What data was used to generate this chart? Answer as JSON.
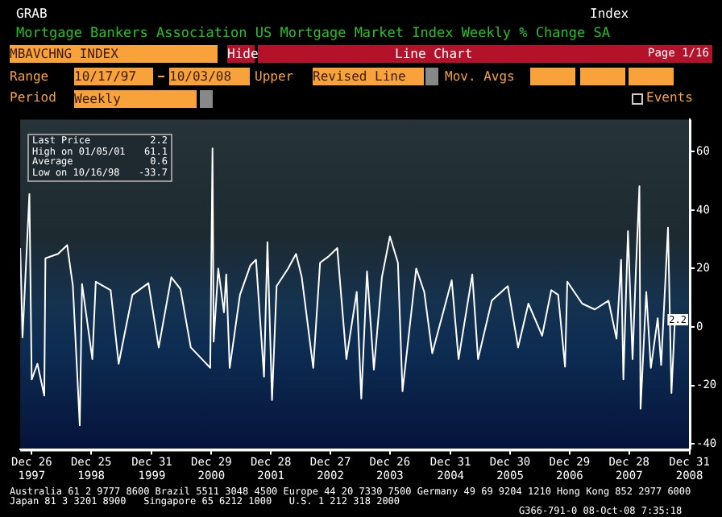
{
  "chart_data": {
    "type": "line",
    "title": "Mortgage Bankers Association US Mortgage Market Index Weekly % Change SA",
    "x": [
      "1997-10-17",
      "1997-10-31",
      "1997-12-12",
      "1997-12-26",
      "1998-01-30",
      "1998-03-13",
      "1998-03-20",
      "1998-06-05",
      "1998-07-31",
      "1998-09-04",
      "1998-10-16",
      "1998-10-30",
      "1999-01-01",
      "1999-01-22",
      "1999-04-23",
      "1999-06-11",
      "1999-09-03",
      "1999-12-10",
      "2000-02-11",
      "2000-04-28",
      "2000-06-23",
      "2000-08-25",
      "2000-12-22",
      "2001-01-05",
      "2001-01-12",
      "2001-02-09",
      "2001-03-16",
      "2001-03-30",
      "2001-04-20",
      "2001-06-22",
      "2001-08-24",
      "2001-09-28",
      "2001-11-16",
      "2001-12-07",
      "2002-01-04",
      "2002-02-01",
      "2002-04-12",
      "2002-05-31",
      "2002-07-05",
      "2002-09-13",
      "2002-10-25",
      "2002-12-13",
      "2003-02-07",
      "2003-04-04",
      "2003-06-06",
      "2003-07-04",
      "2003-08-08",
      "2003-09-19",
      "2003-11-07",
      "2003-12-26",
      "2004-02-13",
      "2004-03-12",
      "2004-06-04",
      "2004-07-23",
      "2004-09-10",
      "2005-01-07",
      "2005-02-18",
      "2005-05-13",
      "2005-06-17",
      "2005-09-09",
      "2005-12-16",
      "2006-02-17",
      "2006-04-21",
      "2006-07-14",
      "2006-09-08",
      "2006-10-20",
      "2006-12-01",
      "2006-12-15",
      "2007-03-16",
      "2007-06-01",
      "2007-08-24",
      "2007-10-12",
      "2007-11-09",
      "2007-11-23",
      "2007-12-21",
      "2008-01-18",
      "2008-02-08",
      "2008-02-29",
      "2008-03-07",
      "2008-04-11",
      "2008-05-09",
      "2008-06-20",
      "2008-07-11",
      "2008-08-22",
      "2008-09-12",
      "2008-10-03"
    ],
    "series": [
      {
        "color": "#ffffff",
        "values": [
          27,
          -3.6,
          45.5,
          -18,
          -12.6,
          -23.5,
          23.5,
          25,
          28,
          14,
          -33.7,
          14.7,
          -11,
          15.5,
          12.6,
          -12.6,
          11,
          15,
          -7,
          17,
          13,
          -7,
          -14,
          61.1,
          -5,
          20,
          5,
          18,
          -14,
          11,
          21,
          23,
          -17,
          29,
          -25,
          14,
          20,
          25,
          17,
          -14,
          22,
          24,
          27,
          -11,
          12,
          -24.5,
          19,
          -14.6,
          17,
          31,
          22,
          -22,
          20,
          12,
          -9,
          16,
          -11,
          18,
          -11,
          9,
          14,
          -7,
          8,
          -3,
          12.6,
          11,
          -13.6,
          15.5,
          8,
          6,
          9,
          -4,
          23,
          -18,
          32.8,
          -11,
          20,
          48.2,
          -28,
          12,
          -14,
          3,
          -13,
          34,
          -22.6,
          2.2
        ]
      }
    ],
    "xlim": [
      "1997-10-17",
      "2009-01-02"
    ],
    "xticks": [
      {
        "value": "1997-12-26",
        "label": "Dec 26\n1997"
      },
      {
        "value": "1998-12-25",
        "label": "Dec 25\n1998"
      },
      {
        "value": "1999-12-31",
        "label": "Dec 31\n1999"
      },
      {
        "value": "2000-12-29",
        "label": "Dec 29\n2000"
      },
      {
        "value": "2001-12-28",
        "label": "Dec 28\n2001"
      },
      {
        "value": "2002-12-27",
        "label": "Dec 27\n2002"
      },
      {
        "value": "2003-12-26",
        "label": "Dec 26\n2003"
      },
      {
        "value": "2004-12-31",
        "label": "Dec 31\n2004"
      },
      {
        "value": "2005-12-30",
        "label": "Dec 30\n2005"
      },
      {
        "value": "2006-12-29",
        "label": "Dec 29\n2006"
      },
      {
        "value": "2007-12-28",
        "label": "Dec 28\n2007"
      },
      {
        "value": "2008-12-31",
        "label": "Dec 31\n2008"
      }
    ],
    "ylim": [
      -42,
      71
    ],
    "yticks": [
      -40,
      -20,
      0,
      20,
      40,
      60
    ],
    "grid": false,
    "legend": false,
    "marker": "none",
    "line_style": "solid",
    "annotations": [
      "GRAB",
      "Index",
      "MBAVCHNG INDEX",
      "Hide",
      "Line Chart",
      "Page 1/16",
      "Range",
      "10/17/97",
      "10/03/08",
      "Upper",
      "Revised Line",
      "Mov. Avgs",
      "Period",
      "Weekly",
      "Events",
      "Last Price",
      "2.2",
      "High on 01/05/01",
      "61.1",
      "Average",
      "0.6",
      "Low on 10/16/98",
      "-33.7",
      "Australia 61 2 9777 8600 Brazil 5511 3048 4500 Europe 44 20 7330 7500 Germany 49 69 9204 1210 Hong Kong 852 2977 6000",
      "Japan 81 3 3201 8900   Singapore 65 6212 1000   U.S. 1 212 318 2000",
      "G366-791-0 08-Oct-08 7:35:18",
      {
        "text": "2.2",
        "x": "2008-10-03",
        "y": 2.2
      }
    ]
  }
}
